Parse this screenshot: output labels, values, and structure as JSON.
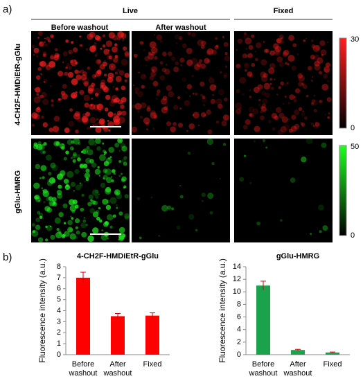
{
  "figure": {
    "panel_a_label": "a)",
    "panel_b_label": "b)",
    "groups": [
      "Live",
      "Fixed"
    ],
    "columns": [
      "Before washout",
      "After washout"
    ],
    "rows": [
      "4-CH2F-HMDiEtR-gGlu",
      "gGlu-HMRG"
    ],
    "colorbars": [
      {
        "max": 30,
        "min": 0,
        "color": "#ff2020"
      },
      {
        "max": 50,
        "min": 0,
        "color": "#20ff20"
      }
    ]
  },
  "chart_data": [
    {
      "type": "bar",
      "title": "4-CH2F-HMDiEtR-gGlu",
      "y_label": "Fluorescence intensity (a.u.)",
      "categories": [
        "Before washout",
        "After washout",
        "Fixed"
      ],
      "values": [
        7.0,
        3.5,
        3.55
      ],
      "errors": [
        0.5,
        0.25,
        0.25
      ],
      "color": "#ff0000",
      "ylim": [
        0,
        8
      ],
      "yticks": [
        0,
        1,
        2,
        3,
        4,
        5,
        6,
        7,
        8
      ]
    },
    {
      "type": "bar",
      "title": "gGlu-HMRG",
      "y_label": "Fluorescence intensity (a.u.)",
      "categories": [
        "Before washout",
        "After washout",
        "Fixed"
      ],
      "values": [
        11.0,
        0.75,
        0.35
      ],
      "errors": [
        0.7,
        0.1,
        0.08
      ],
      "color": "#1aa34a",
      "ylim": [
        0,
        14
      ],
      "yticks": [
        0,
        2,
        4,
        6,
        8,
        10,
        12,
        14
      ]
    }
  ]
}
